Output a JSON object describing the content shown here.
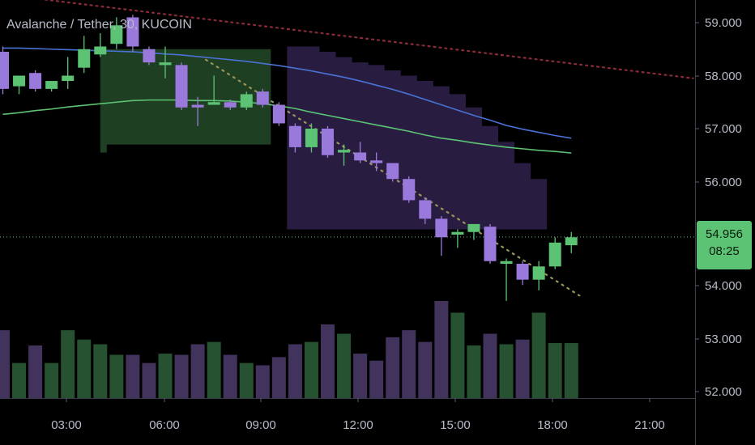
{
  "chart_data": {
    "type": "candlestick",
    "title": "Avalanche / Tether, 30, KUCOIN",
    "x_ticks": [
      "03:00",
      "06:00",
      "09:00",
      "12:00",
      "15:00",
      "18:00",
      "21:00"
    ],
    "y_ticks": [
      "59.000",
      "58.000",
      "57.000",
      "56.000",
      "54.000",
      "53.000",
      "52.000"
    ],
    "ylim": [
      51.97,
      59.5
    ],
    "last_price": 54.956,
    "last_price_label": "54.956",
    "countdown": "08:25",
    "colors": {
      "up": "#5cc374",
      "down": "#9a79dc",
      "ma_fast": "#5cc374",
      "ma_slow": "#4a72d4",
      "trend_dashed": "#9a9458",
      "resistance_dotted": "#8a2b3a",
      "zone_green": "#254a29",
      "zone_purple": "#2a1f44",
      "price_line": "#5cc374"
    },
    "candles": [
      {
        "o": 58.45,
        "h": 58.55,
        "l": 57.65,
        "c": 57.75
      },
      {
        "o": 57.8,
        "h": 57.95,
        "l": 57.65,
        "c": 58.0
      },
      {
        "o": 58.05,
        "h": 58.1,
        "l": 57.7,
        "c": 57.75
      },
      {
        "o": 57.75,
        "h": 57.9,
        "l": 57.7,
        "c": 57.9
      },
      {
        "o": 57.9,
        "h": 58.35,
        "l": 57.75,
        "c": 58.0
      },
      {
        "o": 58.15,
        "h": 58.75,
        "l": 58.05,
        "c": 58.5
      },
      {
        "o": 58.4,
        "h": 58.8,
        "l": 58.35,
        "c": 58.55
      },
      {
        "o": 58.6,
        "h": 59.1,
        "l": 58.5,
        "c": 58.95
      },
      {
        "o": 59.1,
        "h": 59.15,
        "l": 58.45,
        "c": 58.55
      },
      {
        "o": 58.5,
        "h": 58.55,
        "l": 58.2,
        "c": 58.25
      },
      {
        "o": 58.2,
        "h": 58.55,
        "l": 57.95,
        "c": 58.25
      },
      {
        "o": 58.2,
        "h": 58.25,
        "l": 57.35,
        "c": 57.4
      },
      {
        "o": 57.45,
        "h": 57.6,
        "l": 57.05,
        "c": 57.4
      },
      {
        "o": 57.45,
        "h": 58.0,
        "l": 57.45,
        "c": 57.5
      },
      {
        "o": 57.5,
        "h": 57.55,
        "l": 57.35,
        "c": 57.4
      },
      {
        "o": 57.4,
        "h": 57.7,
        "l": 57.35,
        "c": 57.65
      },
      {
        "o": 57.7,
        "h": 57.75,
        "l": 57.4,
        "c": 57.45
      },
      {
        "o": 57.45,
        "h": 57.5,
        "l": 57.05,
        "c": 57.1
      },
      {
        "o": 57.05,
        "h": 57.1,
        "l": 56.55,
        "c": 56.65
      },
      {
        "o": 56.65,
        "h": 57.1,
        "l": 56.55,
        "c": 57.0
      },
      {
        "o": 57.0,
        "h": 57.05,
        "l": 56.45,
        "c": 56.5
      },
      {
        "o": 56.55,
        "h": 56.7,
        "l": 56.3,
        "c": 56.6
      },
      {
        "o": 56.55,
        "h": 56.75,
        "l": 56.35,
        "c": 56.4
      },
      {
        "o": 56.4,
        "h": 56.55,
        "l": 56.2,
        "c": 56.35
      },
      {
        "o": 56.35,
        "h": 56.35,
        "l": 56.0,
        "c": 56.05
      },
      {
        "o": 56.05,
        "h": 56.1,
        "l": 55.6,
        "c": 55.65
      },
      {
        "o": 55.65,
        "h": 55.7,
        "l": 55.2,
        "c": 55.3
      },
      {
        "o": 55.3,
        "h": 55.35,
        "l": 54.6,
        "c": 54.95
      },
      {
        "o": 55.0,
        "h": 55.1,
        "l": 54.75,
        "c": 55.05
      },
      {
        "o": 55.05,
        "h": 55.2,
        "l": 54.9,
        "c": 55.2
      },
      {
        "o": 55.15,
        "h": 55.2,
        "l": 54.45,
        "c": 54.5
      },
      {
        "o": 54.45,
        "h": 54.55,
        "l": 53.75,
        "c": 54.5
      },
      {
        "o": 54.45,
        "h": 54.5,
        "l": 54.05,
        "c": 54.15
      },
      {
        "o": 54.15,
        "h": 54.5,
        "l": 53.95,
        "c": 54.4
      },
      {
        "o": 54.4,
        "h": 54.95,
        "l": 54.35,
        "c": 54.85
      },
      {
        "o": 54.8,
        "h": 55.05,
        "l": 54.65,
        "c": 54.95
      }
    ],
    "volume": [
      58,
      30,
      45,
      30,
      58,
      50,
      46,
      37,
      37,
      30,
      38,
      37,
      46,
      48,
      37,
      30,
      28,
      35,
      46,
      48,
      63,
      55,
      38,
      32,
      52,
      58,
      48,
      83,
      73,
      45,
      55,
      46,
      50,
      73,
      47,
      47
    ],
    "ma_slow": [
      58.52,
      58.52,
      58.51,
      58.5,
      58.49,
      58.48,
      58.47,
      58.46,
      58.45,
      58.43,
      58.41,
      58.39,
      58.36,
      58.33,
      58.3,
      58.27,
      58.23,
      58.19,
      58.14,
      58.09,
      58.03,
      57.97,
      57.9,
      57.82,
      57.74,
      57.65,
      57.55,
      57.45,
      57.35,
      57.25,
      57.16,
      57.06,
      56.99,
      56.93,
      56.87,
      56.82
    ],
    "ma_fast": [
      57.27,
      57.3,
      57.34,
      57.37,
      57.41,
      57.44,
      57.47,
      57.5,
      57.53,
      57.54,
      57.54,
      57.54,
      57.53,
      57.53,
      57.52,
      57.5,
      57.47,
      57.43,
      57.38,
      57.31,
      57.25,
      57.19,
      57.13,
      57.07,
      57.01,
      56.95,
      56.88,
      56.82,
      56.78,
      56.73,
      56.69,
      56.65,
      56.62,
      56.59,
      56.57,
      56.54
    ],
    "zones": [
      {
        "kind": "green",
        "from_bar": 6,
        "to_bar": 16.5,
        "top": 58.5,
        "bottom": 56.7
      },
      {
        "kind": "purple",
        "from_bar": 17.5,
        "to_bar": 33.5,
        "top": 58.55,
        "bottom": 55.1,
        "top_steps": [
          58.55,
          58.55,
          58.45,
          58.35,
          58.25,
          58.2,
          58.1,
          58.0,
          57.9,
          57.8,
          57.65,
          57.4,
          57.05,
          56.75,
          56.35,
          56.05
        ]
      }
    ],
    "trend_dashed": {
      "from_bar": 12.5,
      "from_price": 58.3,
      "to_bar": 35.5,
      "to_price": 53.85
    },
    "resistance_dotted": {
      "from_bar": -0.5,
      "from_price": 59.55,
      "to_bar": 42.5,
      "to_price": 57.95
    }
  }
}
